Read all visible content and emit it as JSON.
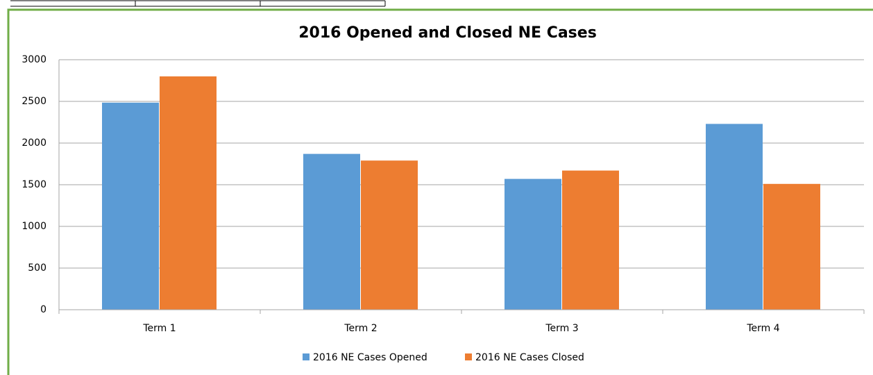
{
  "chart_data": {
    "type": "bar",
    "title": "2016 Opened and Closed NE Cases",
    "categories": [
      "Term 1",
      "Term 2",
      "Term 3",
      "Term 4"
    ],
    "series": [
      {
        "name": "2016 NE Cases Opened",
        "color": "#5b9bd5",
        "values": [
          2485,
          1870,
          1570,
          2230
        ]
      },
      {
        "name": "2016 NE Cases Closed",
        "color": "#ed7d31",
        "values": [
          2800,
          1790,
          1670,
          1510
        ]
      }
    ],
    "ylim": [
      0,
      3000
    ],
    "yticks": [
      0,
      500,
      1000,
      1500,
      2000,
      2500,
      3000
    ],
    "grid": true,
    "legend": "bottom"
  }
}
